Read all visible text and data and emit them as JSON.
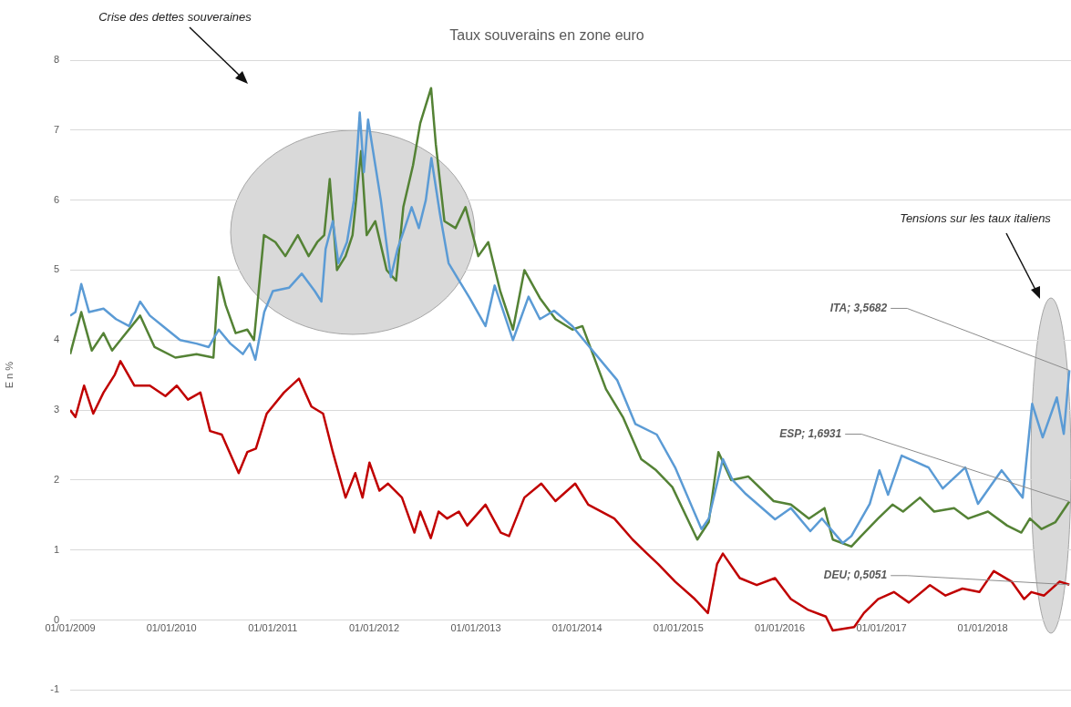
{
  "chart_data": {
    "type": "line",
    "title": "Taux souverains en zone euro",
    "ylabel": "E n %",
    "xlim": [
      "2009-01-01",
      "2018-11-15"
    ],
    "xticks": [
      {
        "value": "2009-01-01",
        "label": "01/01/2009"
      },
      {
        "value": "2010-01-01",
        "label": "01/01/2010"
      },
      {
        "value": "2011-01-01",
        "label": "01/01/2011"
      },
      {
        "value": "2012-01-01",
        "label": "01/01/2012"
      },
      {
        "value": "2013-01-01",
        "label": "01/01/2013"
      },
      {
        "value": "2014-01-01",
        "label": "01/01/2014"
      },
      {
        "value": "2015-01-01",
        "label": "01/01/2015"
      },
      {
        "value": "2016-01-01",
        "label": "01/01/2016"
      },
      {
        "value": "2017-01-01",
        "label": "01/01/2017"
      },
      {
        "value": "2018-01-01",
        "label": "01/01/2018"
      }
    ],
    "ylim": [
      -1,
      8
    ],
    "yticks": [
      -1,
      0,
      1,
      2,
      3,
      4,
      5,
      6,
      7,
      8
    ],
    "grid": "y",
    "series": [
      {
        "color": "#5b9bd5",
        "x": [
          "2009-01-01",
          "2009-01-20",
          "2009-02-10",
          "2009-03-10",
          "2009-05-01",
          "2009-06-15",
          "2009-08-01",
          "2009-09-10",
          "2009-10-15",
          "2009-12-01",
          "2010-02-01",
          "2010-04-01",
          "2010-05-15",
          "2010-06-20",
          "2010-08-01",
          "2010-09-15",
          "2010-10-10",
          "2010-10-30",
          "2010-12-01",
          "2011-01-01",
          "2011-03-01",
          "2011-04-15",
          "2011-06-01",
          "2011-06-25",
          "2011-07-10",
          "2011-08-05",
          "2011-08-25",
          "2011-09-25",
          "2011-10-20",
          "2011-11-10",
          "2011-11-25",
          "2011-12-10",
          "2012-01-05",
          "2012-01-25",
          "2012-03-01",
          "2012-03-25",
          "2012-04-20",
          "2012-05-15",
          "2012-06-10",
          "2012-07-05",
          "2012-07-25",
          "2012-08-25",
          "2012-09-25",
          "2012-11-05",
          "2012-12-10",
          "2013-02-05",
          "2013-03-10",
          "2013-05-15",
          "2013-07-10",
          "2013-08-20",
          "2013-10-10",
          "2013-12-15",
          "2014-01-25",
          "2014-05-25",
          "2014-07-30",
          "2014-10-15",
          "2014-12-20",
          "2015-03-25",
          "2015-04-20",
          "2015-06-10",
          "2015-07-15",
          "2015-09-01",
          "2015-12-15",
          "2016-02-10",
          "2016-04-20",
          "2016-06-01",
          "2016-08-15",
          "2016-09-15",
          "2016-11-20",
          "2016-12-25",
          "2017-01-25",
          "2017-03-15",
          "2017-06-20",
          "2017-08-10",
          "2017-10-30",
          "2017-12-15",
          "2018-03-10",
          "2018-05-25",
          "2018-06-28",
          "2018-08-05",
          "2018-09-25",
          "2018-10-20",
          "2018-11-09"
        ],
        "values": [
          4.35,
          4.4,
          4.8,
          4.4,
          4.45,
          4.3,
          4.2,
          4.55,
          4.35,
          4.2,
          4.0,
          3.95,
          3.9,
          4.15,
          3.95,
          3.8,
          3.95,
          3.72,
          4.4,
          4.7,
          4.75,
          4.95,
          4.7,
          4.55,
          5.3,
          5.7,
          5.1,
          5.4,
          6.0,
          7.25,
          6.4,
          7.15,
          6.5,
          6.0,
          4.9,
          5.3,
          5.6,
          5.9,
          5.6,
          6.0,
          6.6,
          5.8,
          5.1,
          4.83,
          4.6,
          4.2,
          4.78,
          4.0,
          4.62,
          4.3,
          4.42,
          4.2,
          4.0,
          3.43,
          2.8,
          2.65,
          2.18,
          1.3,
          1.45,
          2.3,
          2.0,
          1.8,
          1.44,
          1.6,
          1.27,
          1.45,
          1.1,
          1.2,
          1.66,
          2.14,
          1.79,
          2.35,
          2.18,
          1.88,
          2.18,
          1.66,
          2.14,
          1.75,
          3.09,
          2.61,
          3.18,
          2.66,
          3.5682
        ]
      },
      {
        "color": "#548235",
        "x": [
          "2009-01-01",
          "2009-02-10",
          "2009-03-20",
          "2009-05-01",
          "2009-06-01",
          "2009-07-01",
          "2009-09-10",
          "2009-11-01",
          "2010-01-15",
          "2010-04-01",
          "2010-06-01",
          "2010-06-20",
          "2010-07-15",
          "2010-08-20",
          "2010-10-01",
          "2010-10-25",
          "2010-11-30",
          "2011-01-10",
          "2011-02-15",
          "2011-04-01",
          "2011-05-10",
          "2011-06-10",
          "2011-07-05",
          "2011-07-25",
          "2011-08-20",
          "2011-09-20",
          "2011-10-15",
          "2011-11-15",
          "2011-12-05",
          "2012-01-05",
          "2012-02-15",
          "2012-03-20",
          "2012-04-15",
          "2012-05-20",
          "2012-06-15",
          "2012-07-24",
          "2012-08-10",
          "2012-09-10",
          "2012-10-20",
          "2012-11-25",
          "2013-01-10",
          "2013-02-15",
          "2013-03-30",
          "2013-05-15",
          "2013-06-25",
          "2013-08-20",
          "2013-10-15",
          "2013-12-15",
          "2014-01-20",
          "2014-04-15",
          "2014-06-15",
          "2014-08-20",
          "2014-10-10",
          "2014-12-10",
          "2015-03-10",
          "2015-04-20",
          "2015-05-25",
          "2015-07-10",
          "2015-09-10",
          "2015-12-10",
          "2016-02-10",
          "2016-04-15",
          "2016-06-10",
          "2016-07-10",
          "2016-09-15",
          "2016-10-20",
          "2016-12-20",
          "2017-02-10",
          "2017-03-20",
          "2017-05-20",
          "2017-07-10",
          "2017-09-20",
          "2017-11-10",
          "2018-01-20",
          "2018-03-30",
          "2018-05-20",
          "2018-06-20",
          "2018-08-01",
          "2018-09-20",
          "2018-11-09"
        ],
        "values": [
          3.8,
          4.4,
          3.85,
          4.1,
          3.85,
          4.0,
          4.35,
          3.9,
          3.75,
          3.8,
          3.75,
          4.9,
          4.5,
          4.1,
          4.15,
          4.0,
          5.5,
          5.4,
          5.2,
          5.5,
          5.2,
          5.4,
          5.5,
          6.3,
          5.0,
          5.2,
          5.5,
          6.7,
          5.5,
          5.7,
          5.0,
          4.85,
          5.9,
          6.5,
          7.1,
          7.6,
          6.8,
          5.7,
          5.6,
          5.9,
          5.2,
          5.4,
          4.7,
          4.15,
          5.0,
          4.6,
          4.3,
          4.15,
          4.2,
          3.3,
          2.9,
          2.3,
          2.15,
          1.9,
          1.15,
          1.4,
          2.4,
          2.0,
          2.05,
          1.7,
          1.65,
          1.45,
          1.6,
          1.15,
          1.05,
          1.2,
          1.45,
          1.65,
          1.55,
          1.75,
          1.55,
          1.6,
          1.45,
          1.55,
          1.35,
          1.25,
          1.45,
          1.3,
          1.4,
          1.6931
        ]
      },
      {
        "color": "#c00000",
        "x": [
          "2009-01-01",
          "2009-01-20",
          "2009-02-20",
          "2009-03-25",
          "2009-05-01",
          "2009-06-10",
          "2009-07-01",
          "2009-08-20",
          "2009-10-15",
          "2009-12-10",
          "2010-01-20",
          "2010-03-01",
          "2010-04-15",
          "2010-05-20",
          "2010-07-01",
          "2010-08-31",
          "2010-10-01",
          "2010-11-01",
          "2010-12-10",
          "2011-02-10",
          "2011-04-05",
          "2011-05-20",
          "2011-07-01",
          "2011-08-05",
          "2011-09-20",
          "2011-10-25",
          "2011-11-20",
          "2011-12-15",
          "2012-01-20",
          "2012-02-20",
          "2012-04-10",
          "2012-05-25",
          "2012-06-15",
          "2012-07-23",
          "2012-08-20",
          "2012-09-20",
          "2012-11-01",
          "2012-12-01",
          "2013-02-05",
          "2013-04-01",
          "2013-05-01",
          "2013-06-25",
          "2013-08-25",
          "2013-10-15",
          "2013-12-25",
          "2014-02-10",
          "2014-05-15",
          "2014-07-20",
          "2014-09-10",
          "2014-10-20",
          "2014-12-20",
          "2015-03-01",
          "2015-04-17",
          "2015-05-20",
          "2015-06-10",
          "2015-08-10",
          "2015-10-10",
          "2015-12-15",
          "2016-02-10",
          "2016-04-10",
          "2016-06-15",
          "2016-07-10",
          "2016-09-25",
          "2016-10-30",
          "2016-12-20",
          "2017-02-15",
          "2017-04-10",
          "2017-06-25",
          "2017-08-20",
          "2017-10-20",
          "2017-12-20",
          "2018-02-10",
          "2018-04-15",
          "2018-05-30",
          "2018-06-25",
          "2018-08-10",
          "2018-10-05",
          "2018-11-09"
        ],
        "values": [
          3.0,
          2.9,
          3.35,
          2.95,
          3.25,
          3.5,
          3.7,
          3.35,
          3.35,
          3.2,
          3.35,
          3.15,
          3.25,
          2.7,
          2.65,
          2.1,
          2.4,
          2.45,
          2.95,
          3.25,
          3.45,
          3.05,
          2.95,
          2.4,
          1.75,
          2.1,
          1.75,
          2.25,
          1.85,
          1.95,
          1.75,
          1.25,
          1.55,
          1.17,
          1.55,
          1.45,
          1.55,
          1.35,
          1.65,
          1.25,
          1.2,
          1.75,
          1.95,
          1.7,
          1.95,
          1.65,
          1.45,
          1.15,
          0.95,
          0.8,
          0.55,
          0.3,
          0.1,
          0.8,
          0.95,
          0.6,
          0.5,
          0.6,
          0.3,
          0.15,
          0.05,
          -0.15,
          -0.1,
          0.1,
          0.3,
          0.4,
          0.25,
          0.5,
          0.35,
          0.45,
          0.4,
          0.7,
          0.55,
          0.3,
          0.4,
          0.35,
          0.55,
          0.5051
        ]
      }
    ],
    "annotations": [
      "Crise des dettes souveraines",
      "Tensions sur les taux italiens",
      {
        "text": "ITA; 3,5682",
        "x": "2018-11-09",
        "y": 3.5682
      },
      {
        "text": "ESP; 1,6931",
        "x": "2018-11-09",
        "y": 1.6931
      },
      {
        "text": "DEU; 0,5051",
        "x": "2018-11-09",
        "y": 0.5051
      }
    ]
  }
}
